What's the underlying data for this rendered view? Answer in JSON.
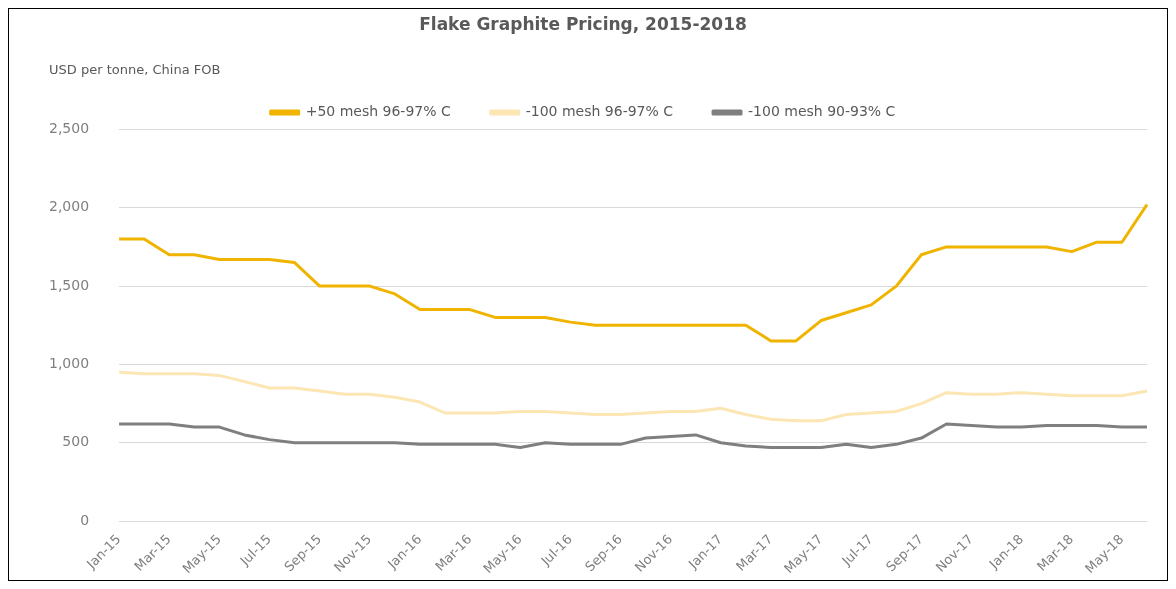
{
  "chart_data": {
    "type": "line",
    "title": "Flake Graphite Pricing, 2015-2018",
    "ylabel": "USD per tonne, China FOB",
    "categories": [
      "Jan-15",
      null,
      "Mar-15",
      null,
      "May-15",
      null,
      "Jul-15",
      null,
      "Sep-15",
      null,
      "Nov-15",
      null,
      "Jan-16",
      null,
      "Mar-16",
      null,
      "May-16",
      null,
      "Jul-16",
      null,
      "Sep-16",
      null,
      "Nov-16",
      null,
      "Jan-17",
      null,
      "Mar-17",
      null,
      "May-17",
      null,
      "Jul-17",
      null,
      "Sep-17",
      null,
      "Nov-17",
      null,
      "Jan-18",
      null,
      "Mar-18",
      null,
      "May-18",
      null
    ],
    "series": [
      {
        "name": "+50 mesh 96-97% C",
        "color": "#f0b400",
        "values": [
          1800,
          1800,
          1700,
          1700,
          1670,
          1670,
          1670,
          1650,
          1500,
          1500,
          1500,
          1450,
          1350,
          1350,
          1350,
          1300,
          1300,
          1300,
          1270,
          1250,
          1250,
          1250,
          1250,
          1250,
          1250,
          1250,
          1150,
          1150,
          1280,
          1330,
          1380,
          1500,
          1700,
          1750,
          1750,
          1750,
          1750,
          1750,
          1720,
          1780,
          1780,
          2020
        ]
      },
      {
        "name": "-100 mesh 96-97% C",
        "color": "#fbe6b4",
        "values": [
          950,
          940,
          940,
          940,
          930,
          890,
          850,
          850,
          830,
          810,
          810,
          790,
          760,
          690,
          690,
          690,
          700,
          700,
          690,
          680,
          680,
          690,
          700,
          700,
          720,
          680,
          650,
          640,
          640,
          680,
          690,
          700,
          750,
          820,
          810,
          810,
          820,
          810,
          800,
          800,
          800,
          830
        ]
      },
      {
        "name": "-100 mesh 90-93% C",
        "color": "#7f7f7f",
        "values": [
          620,
          620,
          620,
          600,
          600,
          550,
          520,
          500,
          500,
          500,
          500,
          500,
          490,
          490,
          490,
          490,
          470,
          500,
          490,
          490,
          490,
          530,
          540,
          550,
          500,
          480,
          470,
          470,
          470,
          490,
          470,
          490,
          530,
          620,
          610,
          600,
          600,
          610,
          610,
          610,
          600,
          600
        ]
      }
    ],
    "ylim": [
      0,
      2500
    ],
    "yticks": [
      0,
      {
        "value": 500,
        "label": "500"
      },
      {
        "value": 1000,
        "label": "1,000"
      },
      {
        "value": 1500,
        "label": "1,500"
      },
      {
        "value": 2000,
        "label": "2,000"
      },
      {
        "value": 2500,
        "label": "2,500"
      }
    ],
    "grid": "y",
    "legend": "top",
    "marker": "none",
    "line_style": "solid"
  }
}
